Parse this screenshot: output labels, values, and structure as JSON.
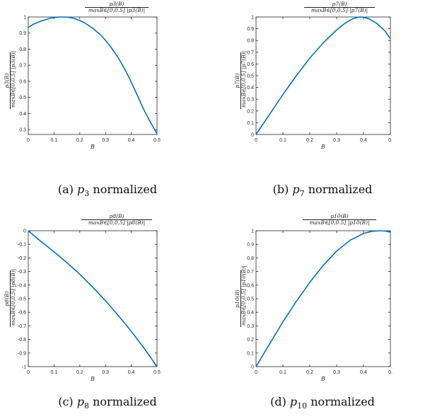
{
  "chart_data": [
    {
      "type": "line",
      "title": {
        "numerator": "p3(B)",
        "denominator": "maxB∈[0,0.5] |p3(B)|"
      },
      "ylabel": {
        "numerator": "p3(B)",
        "denominator": "maxB∈[0,0.5] |p3(B)|"
      },
      "xlabel": "B",
      "xlim": [
        0,
        0.5
      ],
      "ylim": [
        0.27,
        1
      ],
      "xticks": [
        "0",
        "0.1",
        "0.2",
        "0.3",
        "0.4",
        "0.5"
      ],
      "yticks": [
        "0.3",
        "0.4",
        "0.5",
        "0.6",
        "0.7",
        "0.8",
        "0.9",
        "1"
      ],
      "ytick_values": [
        0.3,
        0.4,
        0.5,
        0.6,
        0.7,
        0.8,
        0.9,
        1
      ],
      "series": [
        {
          "color": "#0072BD",
          "x": [
            0,
            0.02,
            0.05,
            0.08,
            0.1,
            0.12,
            0.14,
            0.16,
            0.18,
            0.2,
            0.22,
            0.25,
            0.28,
            0.3,
            0.32,
            0.35,
            0.38,
            0.4,
            0.42,
            0.45,
            0.48,
            0.5
          ],
          "y": [
            0.935,
            0.955,
            0.975,
            0.99,
            0.996,
            1.0,
            1.0,
            0.997,
            0.99,
            0.978,
            0.962,
            0.93,
            0.89,
            0.855,
            0.815,
            0.745,
            0.66,
            0.595,
            0.525,
            0.42,
            0.33,
            0.275
          ]
        }
      ],
      "caption": {
        "label": "(a)",
        "symbol": "p",
        "sub": "3",
        "text": "normalized"
      }
    },
    {
      "type": "line",
      "title": {
        "numerator": "p7(B)",
        "denominator": "maxB∈[0,0.5] |p7(B)|"
      },
      "ylabel": {
        "numerator": "p7(B)",
        "denominator": "maxB∈[0,0.5] |p7(B)|"
      },
      "xlabel": "B",
      "xlim": [
        0,
        0.5
      ],
      "ylim": [
        0,
        1
      ],
      "xticks": [
        "0",
        "0.1",
        "0.2",
        "0.3",
        "0.4",
        "0."
      ],
      "yticks": [
        "0",
        "0.1",
        "0.2",
        "0.3",
        "0.4",
        "0.5",
        "0.6",
        "0.7",
        "0.8",
        "0.9",
        "1"
      ],
      "ytick_values": [
        0,
        0.1,
        0.2,
        0.3,
        0.4,
        0.5,
        0.6,
        0.7,
        0.8,
        0.9,
        1
      ],
      "series": [
        {
          "color": "#0072BD",
          "x": [
            0,
            0.05,
            0.1,
            0.15,
            0.2,
            0.25,
            0.3,
            0.33,
            0.36,
            0.38,
            0.39,
            0.4,
            0.42,
            0.45,
            0.48,
            0.5
          ],
          "y": [
            0,
            0.17,
            0.34,
            0.5,
            0.65,
            0.78,
            0.89,
            0.945,
            0.985,
            0.998,
            1.0,
            0.998,
            0.985,
            0.945,
            0.88,
            0.815
          ]
        }
      ],
      "caption": {
        "label": "(b)",
        "symbol": "p",
        "sub": "7",
        "text": "normalized"
      }
    },
    {
      "type": "line",
      "title": {
        "numerator": "p8(B)",
        "denominator": "maxB∈[0,0.5] |p8(B)|"
      },
      "ylabel": {
        "numerator": "p8(B)",
        "denominator": "maxB∈[0,0.5] |p8(B)|"
      },
      "xlabel": "B",
      "xlim": [
        0,
        0.5
      ],
      "ylim": [
        -1,
        0
      ],
      "xticks": [
        "0",
        "0.1",
        "0.2",
        "0.3",
        "0.4",
        "0.5"
      ],
      "yticks": [
        "-1",
        "-0.9",
        "-0.8",
        "-0.7",
        "-0.6",
        "-0.5",
        "-0.4",
        "-0.3",
        "-0.2",
        "-0.1",
        "0"
      ],
      "ytick_values": [
        -1,
        -0.9,
        -0.8,
        -0.7,
        -0.6,
        -0.5,
        -0.4,
        -0.3,
        -0.2,
        -0.1,
        0
      ],
      "series": [
        {
          "color": "#0072BD",
          "x": [
            0,
            0.05,
            0.1,
            0.15,
            0.2,
            0.25,
            0.3,
            0.35,
            0.4,
            0.45,
            0.5
          ],
          "y": [
            0,
            -0.08,
            -0.155,
            -0.235,
            -0.32,
            -0.415,
            -0.515,
            -0.625,
            -0.74,
            -0.865,
            -1.0
          ]
        }
      ],
      "caption": {
        "label": "(c)",
        "symbol": "p",
        "sub": "8",
        "text": "normalized"
      }
    },
    {
      "type": "line",
      "title": {
        "numerator": "p10(B)",
        "denominator": "maxB∈[0,0.5] |p10(B)|"
      },
      "ylabel": {
        "numerator": "p10(B)",
        "denominator": "maxB∈[0,0.5] |p10(B)|"
      },
      "xlabel": "B",
      "xlim": [
        0,
        0.5
      ],
      "ylim": [
        0,
        1
      ],
      "xticks": [
        "0",
        "0.1",
        "0.2",
        "0.3",
        "0.4",
        "0."
      ],
      "yticks": [
        "0",
        "0.1",
        "0.2",
        "0.3",
        "0.4",
        "0.5",
        "0.6",
        "0.7",
        "0.8",
        "0.9",
        "1"
      ],
      "ytick_values": [
        0,
        0.1,
        0.2,
        0.3,
        0.4,
        0.5,
        0.6,
        0.7,
        0.8,
        0.9,
        1
      ],
      "series": [
        {
          "color": "#0072BD",
          "x": [
            0,
            0.05,
            0.1,
            0.15,
            0.2,
            0.25,
            0.3,
            0.35,
            0.4,
            0.43,
            0.46,
            0.48,
            0.5
          ],
          "y": [
            0,
            0.165,
            0.33,
            0.48,
            0.62,
            0.745,
            0.85,
            0.93,
            0.98,
            0.995,
            1.0,
            0.998,
            0.99
          ]
        }
      ],
      "caption": {
        "label": "(d)",
        "symbol": "p",
        "sub": "10",
        "text": "normalized"
      }
    }
  ]
}
